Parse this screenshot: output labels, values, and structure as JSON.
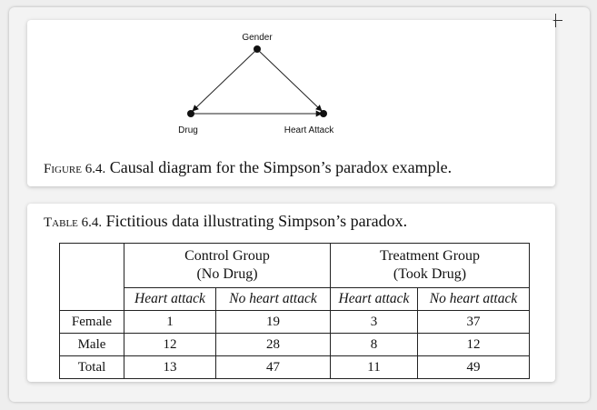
{
  "figure": {
    "nodes": {
      "gender": "Gender",
      "drug": "Drug",
      "heart_attack": "Heart Attack"
    },
    "caption_label": "Figure 6.4.",
    "caption_text": " Causal diagram for the Simpson’s paradox example."
  },
  "table": {
    "caption_label": "Table 6.4.",
    "caption_text": " Fictitious data illustrating Simpson’s paradox.",
    "groups": [
      {
        "line1": "Control Group",
        "line2": "(No Drug)"
      },
      {
        "line1": "Treatment Group",
        "line2": "(Took Drug)"
      }
    ],
    "subheaders": [
      "Heart attack",
      "No heart attack",
      "Heart attack",
      "No heart attack"
    ],
    "rows": [
      {
        "label": "Female",
        "values": [
          "1",
          "19",
          "3",
          "37"
        ]
      },
      {
        "label": "Male",
        "values": [
          "12",
          "28",
          "8",
          "12"
        ]
      },
      {
        "label": "Total",
        "values": [
          "13",
          "47",
          "11",
          "49"
        ]
      }
    ]
  }
}
